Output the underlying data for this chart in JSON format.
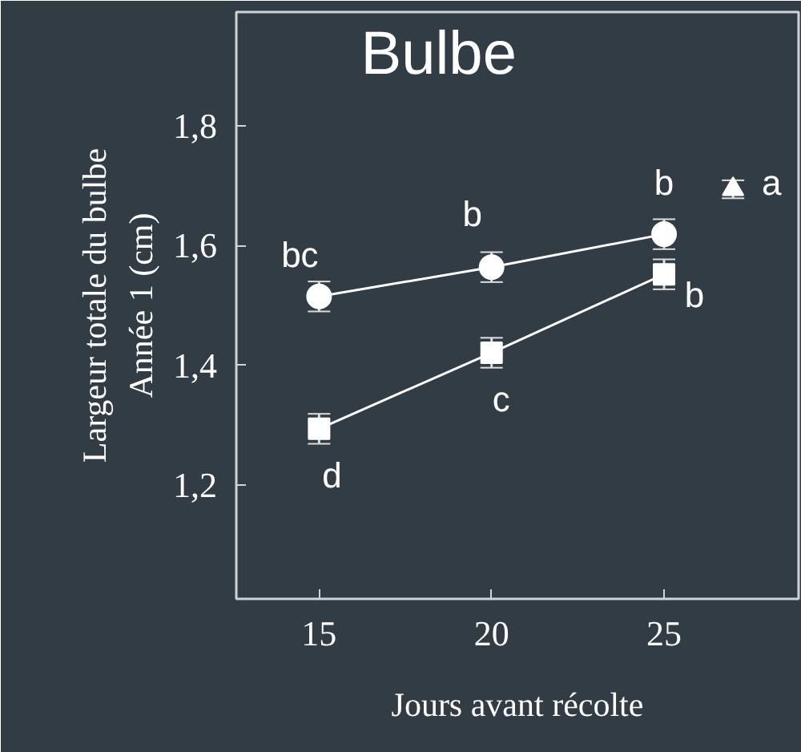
{
  "chart_data": {
    "type": "line",
    "title": "Bulbe",
    "xlabel": "Jours avant récolte",
    "ylabel": "Largeur totale du bulbe\nAnnée 1 (cm)",
    "xlim": [
      12.6,
      28.9
    ],
    "xticks": [
      15,
      20,
      25
    ],
    "ylim": [
      1.01,
      1.99
    ],
    "yticks": [
      {
        "value": 1.2,
        "label": "1,2"
      },
      {
        "value": 1.4,
        "label": "1,4"
      },
      {
        "value": 1.6,
        "label": "1,6"
      },
      {
        "value": 1.8,
        "label": "1,8"
      }
    ],
    "grid": false,
    "line_style": "solid",
    "series": [
      {
        "color": "#ffffff",
        "marker": "circle",
        "x": [
          15,
          20,
          25
        ],
        "values": [
          1.515,
          1.564,
          1.619
        ],
        "errors": [
          0.025,
          0.025,
          0.025
        ]
      },
      {
        "color": "#ffffff",
        "marker": "square",
        "x": [
          15,
          20,
          25
        ],
        "values": [
          1.294,
          1.421,
          1.552
        ],
        "errors": [
          0.025,
          0.025,
          0.025
        ]
      },
      {
        "type": "scatter",
        "color": "#ffffff",
        "marker": "triangle",
        "x": [
          27
        ],
        "values": [
          1.694
        ],
        "errors": [
          0.015
        ]
      }
    ],
    "annotations": [
      {
        "text": "bc",
        "x": 15,
        "y": 1.515
      },
      {
        "text": "b",
        "x": 20,
        "y": 1.564
      },
      {
        "text": "b",
        "x": 25,
        "y": 1.619
      },
      {
        "text": "a",
        "x": 27,
        "y": 1.694
      },
      {
        "text": "b",
        "x": 25,
        "y": 1.552
      },
      {
        "text": "c",
        "x": 20,
        "y": 1.421
      },
      {
        "text": "d",
        "x": 15,
        "y": 1.294
      }
    ]
  }
}
